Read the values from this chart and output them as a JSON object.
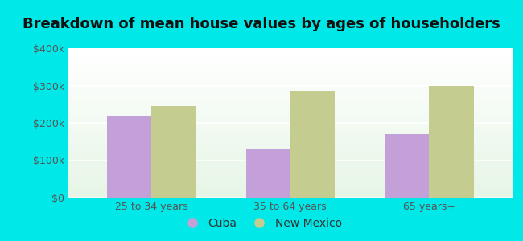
{
  "title": "Breakdown of mean house values by ages of householders",
  "categories": [
    "25 to 34 years",
    "35 to 64 years",
    "65 years+"
  ],
  "cuba_values": [
    220000,
    130000,
    170000
  ],
  "newmexico_values": [
    245000,
    285000,
    300000
  ],
  "cuba_color": "#c4a0d8",
  "newmexico_color": "#c5cc90",
  "ylim": [
    0,
    400000
  ],
  "yticks": [
    0,
    100000,
    200000,
    300000,
    400000
  ],
  "ytick_labels": [
    "$0",
    "$100k",
    "$200k",
    "$300k",
    "$400k"
  ],
  "background_outer": "#00e8e8",
  "bar_width": 0.32,
  "legend_labels": [
    "Cuba",
    "New Mexico"
  ],
  "title_fontsize": 13,
  "tick_fontsize": 9,
  "legend_fontsize": 10
}
